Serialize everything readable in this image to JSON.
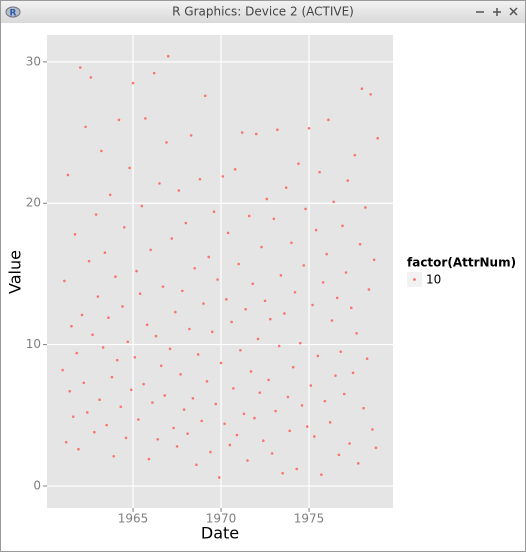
{
  "window": {
    "title": "R Graphics: Device 2 (ACTIVE)"
  },
  "chart_data": {
    "type": "scatter",
    "x_label": "Date",
    "y_label": "Value",
    "x": [
      1961,
      1961.1,
      1961.2,
      1961.3,
      1961.4,
      1961.5,
      1961.6,
      1961.7,
      1961.8,
      1961.9,
      1962,
      1962.1,
      1962.2,
      1962.3,
      1962.4,
      1962.5,
      1962.6,
      1962.7,
      1962.8,
      1962.9,
      1963,
      1963.1,
      1963.2,
      1963.3,
      1963.4,
      1963.5,
      1963.6,
      1963.7,
      1963.8,
      1963.9,
      1964,
      1964.1,
      1964.2,
      1964.3,
      1964.4,
      1964.5,
      1964.6,
      1964.7,
      1964.8,
      1964.9,
      1965,
      1965.1,
      1965.2,
      1965.3,
      1965.4,
      1965.5,
      1965.6,
      1965.7,
      1965.8,
      1965.9,
      1966,
      1966.1,
      1966.2,
      1966.3,
      1966.4,
      1966.5,
      1966.6,
      1966.7,
      1966.8,
      1966.9,
      1967,
      1967.1,
      1967.2,
      1967.3,
      1967.4,
      1967.5,
      1967.6,
      1967.7,
      1967.8,
      1967.9,
      1968,
      1968.1,
      1968.2,
      1968.3,
      1968.4,
      1968.5,
      1968.6,
      1968.7,
      1968.8,
      1968.9,
      1969,
      1969.1,
      1969.2,
      1969.3,
      1969.4,
      1969.5,
      1969.6,
      1969.7,
      1969.8,
      1969.9,
      1970,
      1970.1,
      1970.2,
      1970.3,
      1970.4,
      1970.5,
      1970.6,
      1970.7,
      1970.8,
      1970.9,
      1971,
      1971.1,
      1971.2,
      1971.3,
      1971.4,
      1971.5,
      1971.6,
      1971.7,
      1971.8,
      1971.9,
      1972,
      1972.1,
      1972.2,
      1972.3,
      1972.4,
      1972.5,
      1972.6,
      1972.7,
      1972.8,
      1972.9,
      1973,
      1973.1,
      1973.2,
      1973.3,
      1973.4,
      1973.5,
      1973.6,
      1973.7,
      1973.8,
      1973.9,
      1974,
      1974.1,
      1974.2,
      1974.3,
      1974.4,
      1974.5,
      1974.6,
      1974.7,
      1974.8,
      1974.9,
      1975,
      1975.1,
      1975.2,
      1975.3,
      1975.4,
      1975.5,
      1975.6,
      1975.7,
      1975.8,
      1975.9,
      1976,
      1976.1,
      1976.2,
      1976.3,
      1976.4,
      1976.5,
      1976.6,
      1976.7,
      1976.8,
      1976.9,
      1977,
      1977.1,
      1977.2,
      1977.3,
      1977.4,
      1977.5,
      1977.6,
      1977.7,
      1977.8,
      1977.9,
      1978,
      1978.1,
      1978.2,
      1978.3,
      1978.4,
      1978.5,
      1978.6,
      1978.7,
      1978.8,
      1978.9
    ],
    "series": [
      {
        "name": "10",
        "color": "#f8766d",
        "values": [
          8.2,
          14.5,
          3.1,
          22.0,
          6.7,
          11.3,
          4.9,
          17.8,
          9.4,
          2.6,
          29.6,
          12.1,
          7.3,
          25.4,
          5.2,
          15.9,
          28.9,
          10.7,
          3.8,
          19.2,
          13.4,
          6.1,
          23.7,
          9.8,
          16.5,
          4.3,
          11.9,
          20.6,
          7.7,
          2.1,
          14.8,
          8.9,
          25.9,
          5.6,
          12.7,
          18.3,
          3.4,
          10.2,
          22.5,
          6.8,
          28.5,
          9.1,
          15.2,
          4.7,
          13.6,
          19.8,
          7.2,
          26.0,
          11.4,
          1.9,
          16.7,
          5.9,
          29.2,
          10.6,
          3.3,
          21.4,
          8.5,
          14.1,
          6.4,
          24.3,
          30.4,
          9.7,
          17.5,
          4.1,
          12.3,
          2.8,
          20.9,
          7.9,
          13.8,
          5.4,
          18.6,
          3.7,
          11.1,
          24.8,
          6.2,
          15.4,
          1.5,
          9.3,
          21.7,
          4.6,
          12.9,
          27.6,
          7.4,
          16.2,
          2.4,
          10.9,
          19.4,
          5.8,
          14.6,
          0.6,
          8.7,
          21.9,
          4.4,
          13.2,
          17.9,
          2.9,
          11.6,
          6.9,
          22.4,
          3.6,
          15.7,
          9.6,
          25.0,
          5.1,
          12.5,
          1.8,
          19.1,
          8.1,
          14.3,
          4.8,
          24.9,
          10.4,
          6.6,
          16.9,
          3.2,
          13.1,
          20.3,
          7.5,
          11.8,
          2.3,
          18.9,
          5.3,
          25.2,
          9.9,
          14.9,
          0.9,
          12.2,
          21.1,
          6.3,
          3.9,
          17.2,
          8.4,
          13.7,
          1.2,
          22.8,
          10.1,
          5.7,
          15.6,
          19.6,
          4.2,
          25.3,
          7.1,
          12.8,
          3.5,
          18.1,
          9.2,
          22.2,
          0.8,
          14.4,
          6.0,
          16.4,
          25.9,
          4.5,
          11.7,
          20.1,
          7.8,
          13.3,
          2.2,
          9.5,
          18.4,
          6.5,
          15.1,
          21.6,
          3.0,
          12.6,
          8.0,
          23.4,
          10.8,
          1.6,
          17.1,
          28.1,
          5.5,
          19.7,
          9.0,
          13.9,
          27.7,
          4.0,
          16.0,
          2.7,
          24.6
        ]
      }
    ],
    "legend_title": "factor(AttrNum)",
    "xlim": [
      1960.11,
      1979.77
    ],
    "xticks": [
      1965,
      1970,
      1975
    ],
    "ylim": [
      -1.56,
      31.9
    ],
    "yticks": [
      0,
      10,
      20,
      30
    ],
    "grid": true
  }
}
